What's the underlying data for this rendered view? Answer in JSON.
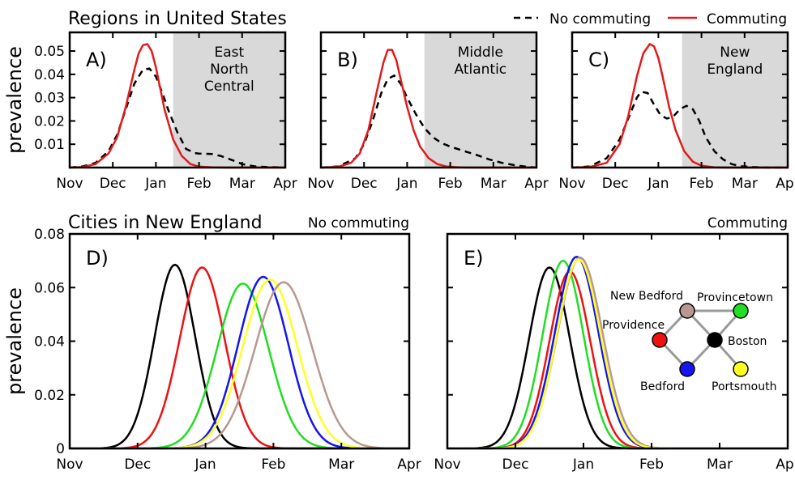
{
  "figure": {
    "top_heading": "Regions in United States",
    "bottom_heading": "Cities in New England"
  },
  "legend": {
    "items": [
      {
        "label": "No commuting",
        "color": "#000000",
        "dash": true
      },
      {
        "label": "Commuting",
        "color": "#e31a1c",
        "dash": false
      }
    ]
  },
  "network": {
    "nodes": [
      {
        "name": "New Bedford",
        "color": "#b89890"
      },
      {
        "name": "Provincetown",
        "color": "#22dd22"
      },
      {
        "name": "Providence",
        "color": "#ee1111"
      },
      {
        "name": "Boston",
        "color": "#000000"
      },
      {
        "name": "Bedford",
        "color": "#1515ee"
      },
      {
        "name": "Portsmouth",
        "color": "#ffff22"
      }
    ],
    "edge_color": "#999999"
  },
  "chart_data": [
    {
      "id": "A",
      "type": "line",
      "panel_label": "A)",
      "region_label": [
        "East",
        "North",
        "Central"
      ],
      "ylabel": "prevalence",
      "x_ticks": [
        "Nov",
        "Dec",
        "Jan",
        "Feb",
        "Mar",
        "Apr"
      ],
      "xlim": [
        0,
        5
      ],
      "ylim": [
        0,
        0.058
      ],
      "y_ticks": [
        0.01,
        0.02,
        0.03,
        0.04,
        0.05
      ],
      "y_tick_labels": [
        "0.01",
        "0.02",
        "0.03",
        "0.04",
        "0.05"
      ],
      "shaded_from": 2.4,
      "series": [
        {
          "name": "No commuting",
          "color": "#000000",
          "dash": true,
          "x": [
            0.0,
            0.3,
            0.6,
            0.9,
            1.1,
            1.3,
            1.5,
            1.7,
            1.85,
            2.0,
            2.15,
            2.3,
            2.5,
            2.7,
            2.9,
            3.0,
            3.3,
            3.5,
            3.8,
            4.0,
            4.3,
            4.6,
            5.0
          ],
          "y": [
            0,
            0.0005,
            0.002,
            0.007,
            0.014,
            0.025,
            0.036,
            0.042,
            0.0425,
            0.039,
            0.032,
            0.024,
            0.015,
            0.008,
            0.0062,
            0.006,
            0.0058,
            0.005,
            0.003,
            0.0015,
            0.0005,
            0.0002,
            0
          ]
        },
        {
          "name": "Commuting",
          "color": "#e31a1c",
          "dash": false,
          "x": [
            0.0,
            0.3,
            0.6,
            0.9,
            1.1,
            1.3,
            1.5,
            1.6,
            1.7,
            1.8,
            1.9,
            2.0,
            2.1,
            2.2,
            2.4,
            2.6,
            2.8,
            3.0,
            3.3,
            3.6,
            5.0
          ],
          "y": [
            0,
            0.0002,
            0.0015,
            0.006,
            0.013,
            0.026,
            0.042,
            0.049,
            0.0525,
            0.053,
            0.05,
            0.043,
            0.034,
            0.025,
            0.012,
            0.005,
            0.0015,
            0.0004,
            0.0001,
            0,
            0
          ]
        }
      ]
    },
    {
      "id": "B",
      "type": "line",
      "panel_label": "B)",
      "region_label": [
        "Middle",
        "Atlantic"
      ],
      "x_ticks": [
        "Nov",
        "Dec",
        "Jan",
        "Feb",
        "Mar",
        "Apr"
      ],
      "xlim": [
        0,
        5
      ],
      "ylim": [
        0,
        0.058
      ],
      "shaded_from": 2.4,
      "series": [
        {
          "name": "No commuting",
          "color": "#000000",
          "dash": true,
          "x": [
            0.0,
            0.4,
            0.8,
            1.0,
            1.2,
            1.4,
            1.55,
            1.7,
            1.85,
            2.0,
            2.2,
            2.4,
            2.6,
            2.8,
            3.0,
            3.3,
            3.6,
            3.9,
            4.2,
            4.5,
            4.8,
            5.0
          ],
          "y": [
            0,
            0.0005,
            0.004,
            0.01,
            0.02,
            0.032,
            0.038,
            0.0395,
            0.036,
            0.03,
            0.023,
            0.017,
            0.013,
            0.0105,
            0.009,
            0.0072,
            0.0055,
            0.0035,
            0.002,
            0.001,
            0.0003,
            0
          ]
        },
        {
          "name": "Commuting",
          "color": "#e31a1c",
          "dash": false,
          "x": [
            0.0,
            0.4,
            0.7,
            0.9,
            1.1,
            1.3,
            1.45,
            1.55,
            1.65,
            1.75,
            1.85,
            2.0,
            2.15,
            2.3,
            2.5,
            2.7,
            2.9,
            3.2,
            3.6,
            5.0
          ],
          "y": [
            0,
            0.0003,
            0.002,
            0.006,
            0.016,
            0.033,
            0.045,
            0.0505,
            0.0505,
            0.046,
            0.038,
            0.026,
            0.016,
            0.009,
            0.004,
            0.0015,
            0.0005,
            0.0001,
            0,
            0
          ]
        }
      ]
    },
    {
      "id": "C",
      "type": "line",
      "panel_label": "C)",
      "region_label": [
        "New",
        "England"
      ],
      "x_ticks": [
        "Nov",
        "Dec",
        "Jan",
        "Feb",
        "Mar",
        "Apr"
      ],
      "xlim": [
        0,
        5
      ],
      "ylim": [
        0,
        0.058
      ],
      "shaded_from": 2.55,
      "series": [
        {
          "name": "No commuting",
          "color": "#000000",
          "dash": true,
          "x": [
            0.0,
            0.4,
            0.8,
            1.1,
            1.3,
            1.5,
            1.6,
            1.75,
            1.9,
            2.05,
            2.2,
            2.35,
            2.5,
            2.65,
            2.8,
            2.95,
            3.1,
            3.3,
            3.5,
            3.7,
            3.9,
            4.2,
            4.5,
            5.0
          ],
          "y": [
            0,
            0.0005,
            0.004,
            0.012,
            0.021,
            0.03,
            0.0325,
            0.032,
            0.027,
            0.0225,
            0.021,
            0.022,
            0.025,
            0.0265,
            0.025,
            0.02,
            0.013,
            0.007,
            0.0035,
            0.0015,
            0.0006,
            0.0002,
            0,
            0
          ]
        },
        {
          "name": "Commuting",
          "color": "#e31a1c",
          "dash": false,
          "x": [
            0.0,
            0.4,
            0.8,
            1.1,
            1.3,
            1.5,
            1.65,
            1.8,
            1.9,
            2.0,
            2.1,
            2.25,
            2.4,
            2.6,
            2.8,
            3.0,
            3.3,
            3.6,
            5.0
          ],
          "y": [
            0,
            0.0002,
            0.002,
            0.01,
            0.022,
            0.039,
            0.049,
            0.053,
            0.052,
            0.047,
            0.039,
            0.026,
            0.016,
            0.007,
            0.0025,
            0.0008,
            0.0001,
            0,
            0
          ]
        }
      ]
    },
    {
      "id": "D",
      "type": "line",
      "panel_label": "D)",
      "title_right": "No commuting",
      "ylabel": "prevalence",
      "x_ticks": [
        "Nov",
        "Dec",
        "Jan",
        "Feb",
        "Mar",
        "Apr"
      ],
      "xlim": [
        0,
        5
      ],
      "ylim": [
        0,
        0.08
      ],
      "y_ticks": [
        0,
        0.02,
        0.04,
        0.06,
        0.08
      ],
      "y_tick_labels": [
        "0",
        "0.02",
        "0.04",
        "0.06",
        "0.08"
      ],
      "gaussian_series": [
        {
          "name": "Boston",
          "color": "#000000",
          "peak_x": 1.55,
          "peak_y": 0.0685,
          "sigma": 0.3
        },
        {
          "name": "Providence",
          "color": "#ee1111",
          "peak_x": 1.95,
          "peak_y": 0.0675,
          "sigma": 0.33
        },
        {
          "name": "Provincetown",
          "color": "#22dd22",
          "peak_x": 2.55,
          "peak_y": 0.0615,
          "sigma": 0.38
        },
        {
          "name": "Bedford",
          "color": "#1515ee",
          "peak_x": 2.85,
          "peak_y": 0.064,
          "sigma": 0.37
        },
        {
          "name": "Portsmouth",
          "color": "#ffff22",
          "peak_x": 2.95,
          "peak_y": 0.063,
          "sigma": 0.4
        },
        {
          "name": "New Bedford",
          "color": "#b89890",
          "peak_x": 3.15,
          "peak_y": 0.062,
          "sigma": 0.42
        }
      ]
    },
    {
      "id": "E",
      "type": "line",
      "panel_label": "E)",
      "title_right": "Commuting",
      "x_ticks": [
        "Nov",
        "Dec",
        "Jan",
        "Feb",
        "Mar",
        "Apr"
      ],
      "xlim": [
        0,
        5
      ],
      "ylim": [
        0,
        0.08
      ],
      "gaussian_series": [
        {
          "name": "Boston",
          "color": "#000000",
          "peak_x": 1.5,
          "peak_y": 0.0675,
          "sigma": 0.3
        },
        {
          "name": "Providence",
          "color": "#ee1111",
          "peak_x": 1.8,
          "peak_y": 0.066,
          "sigma": 0.3
        },
        {
          "name": "Provincetown",
          "color": "#22dd22",
          "peak_x": 1.7,
          "peak_y": 0.07,
          "sigma": 0.3
        },
        {
          "name": "Bedford",
          "color": "#1515ee",
          "peak_x": 1.9,
          "peak_y": 0.0715,
          "sigma": 0.32
        },
        {
          "name": "New Bedford",
          "color": "#b89890",
          "peak_x": 1.95,
          "peak_y": 0.0712,
          "sigma": 0.33
        },
        {
          "name": "Portsmouth",
          "color": "#ffff22",
          "peak_x": 1.93,
          "peak_y": 0.0705,
          "sigma": 0.32
        }
      ]
    }
  ]
}
